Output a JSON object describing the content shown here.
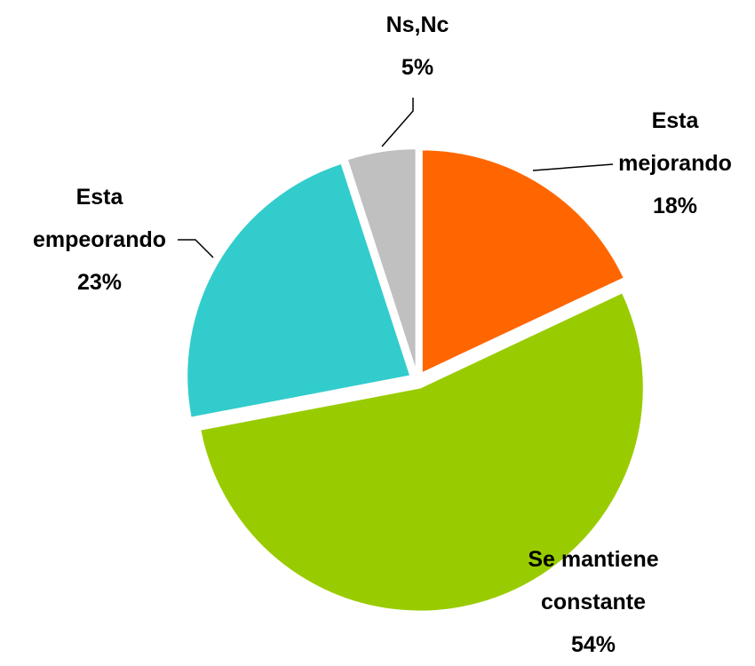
{
  "chart_data": {
    "type": "pie",
    "categories": [
      "Esta mejorando",
      "Se mantiene constante",
      "Esta empeorando",
      "Ns,Nc"
    ],
    "values": [
      18,
      54,
      23,
      5
    ],
    "value_labels": [
      "18%",
      "54%",
      "23%",
      "5%"
    ],
    "colors": [
      "#ff6600",
      "#99cc00",
      "#33cccc",
      "#c0c0c0"
    ]
  }
}
